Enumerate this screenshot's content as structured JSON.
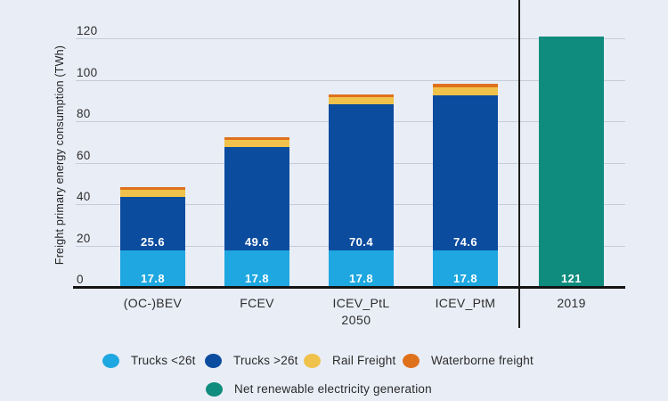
{
  "colors": {
    "background": "#e9edf6",
    "grid": "#c5cdd9",
    "axis": "#141414",
    "divider": "#1c1c1c",
    "text": "#2d2d2d",
    "value_label_text": "#ffffff"
  },
  "chart_data": {
    "type": "bar",
    "stacked": true,
    "title": "",
    "xlabel": "",
    "ylabel": "Freight primary energy consumption (TWh)",
    "ylim": [
      0,
      130
    ],
    "yticks": [
      0,
      20,
      40,
      60,
      80,
      100,
      120
    ],
    "grid": "horizontal",
    "legend_position": "bottom",
    "categories": [
      "(OC-)BEV",
      "FCEV",
      "ICEV_PtL",
      "ICEV_PtM",
      "2019"
    ],
    "group_labels": [
      {
        "label": "2050",
        "covers": [
          "(OC-)BEV",
          "FCEV",
          "ICEV_PtL",
          "ICEV_PtM"
        ]
      }
    ],
    "series": [
      {
        "name": "Trucks <26t",
        "color": "#1ea7e0",
        "values": [
          17.8,
          17.8,
          17.8,
          17.8,
          null
        ],
        "value_labels": [
          "17.8",
          "17.8",
          "17.8",
          "17.8",
          null
        ]
      },
      {
        "name": "Trucks >26t",
        "color": "#0c4c9e",
        "values": [
          25.6,
          49.6,
          70.4,
          74.6,
          null
        ],
        "value_labels": [
          "25.6",
          "49.6",
          "70.4",
          "74.6",
          null
        ]
      },
      {
        "name": "Rail Freight",
        "color": "#f0c24b",
        "values": [
          3.3,
          3.5,
          3.5,
          4.0,
          null
        ],
        "value_labels": [
          null,
          null,
          null,
          null,
          null
        ],
        "values_estimated": true
      },
      {
        "name": "Waterborne freight",
        "color": "#e0711c",
        "values": [
          1.3,
          1.5,
          1.4,
          1.5,
          null
        ],
        "value_labels": [
          null,
          null,
          null,
          null,
          null
        ],
        "values_estimated": true
      },
      {
        "name": "Net renewable electricity generation",
        "color": "#0f8c7d",
        "values": [
          null,
          null,
          null,
          null,
          121
        ],
        "value_labels": [
          null,
          null,
          null,
          null,
          "121"
        ]
      }
    ]
  },
  "legend": {
    "rows": [
      [
        {
          "name": "Trucks <26t",
          "color": "#1ea7e0"
        },
        {
          "name": "Trucks >26t",
          "color": "#0c4c9e"
        },
        {
          "name": "Rail Freight",
          "color": "#f0c24b"
        },
        {
          "name": "Waterborne freight",
          "color": "#e0711c"
        }
      ],
      [
        {
          "name": "Net renewable electricity generation",
          "color": "#0f8c7d"
        }
      ]
    ]
  }
}
